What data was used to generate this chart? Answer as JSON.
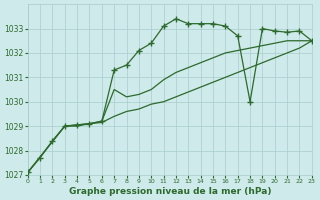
{
  "title": "Graphe pression niveau de la mer (hPa)",
  "background_color": "#ceeaea",
  "grid_color": "#aacccc",
  "line_color": "#2d6a2d",
  "xlim": [
    0,
    23
  ],
  "ylim": [
    1027,
    1034
  ],
  "yticks": [
    1027,
    1028,
    1029,
    1030,
    1031,
    1032,
    1033
  ],
  "xticks": [
    0,
    1,
    2,
    3,
    4,
    5,
    6,
    7,
    8,
    9,
    10,
    11,
    12,
    13,
    14,
    15,
    16,
    17,
    18,
    19,
    20,
    21,
    22,
    23
  ],
  "series1_x": [
    0,
    1,
    2,
    3,
    4,
    5,
    6,
    7,
    8,
    9,
    10,
    11,
    12,
    13,
    14,
    15,
    16,
    17,
    18,
    19,
    20,
    21,
    22,
    23
  ],
  "series1_y": [
    1027.1,
    1027.7,
    1028.4,
    1029.0,
    1029.05,
    1029.1,
    1029.2,
    1031.3,
    1031.5,
    1032.1,
    1032.4,
    1033.1,
    1033.4,
    1033.2,
    1033.2,
    1033.2,
    1033.1,
    1032.7,
    1030.0,
    1033.0,
    1032.9,
    1032.85,
    1032.9,
    1032.5
  ],
  "series2_x": [
    0,
    3,
    4,
    5,
    6,
    7,
    8,
    9,
    10,
    11,
    12,
    13,
    14,
    15,
    16,
    17,
    18,
    19,
    20,
    21,
    22,
    23
  ],
  "series2_y": [
    1027.1,
    1029.0,
    1029.0,
    1029.1,
    1029.2,
    1030.5,
    1030.2,
    1030.3,
    1030.5,
    1030.9,
    1031.2,
    1031.4,
    1031.6,
    1031.8,
    1032.0,
    1032.1,
    1032.2,
    1032.3,
    1032.4,
    1032.5,
    1032.5,
    1032.5
  ],
  "series3_x": [
    0,
    3,
    4,
    5,
    6,
    7,
    8,
    9,
    10,
    11,
    12,
    13,
    14,
    15,
    16,
    17,
    18,
    19,
    20,
    21,
    22,
    23
  ],
  "series3_y": [
    1027.1,
    1029.0,
    1029.05,
    1029.1,
    1029.15,
    1029.4,
    1029.6,
    1029.7,
    1029.9,
    1030.0,
    1030.2,
    1030.4,
    1030.6,
    1030.8,
    1031.0,
    1031.2,
    1031.4,
    1031.6,
    1031.8,
    1032.0,
    1032.2,
    1032.5
  ]
}
